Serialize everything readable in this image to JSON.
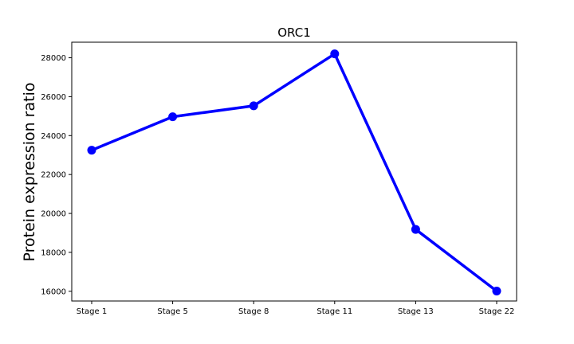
{
  "chart_data": {
    "type": "line",
    "title": "ORC1",
    "xlabel": "",
    "ylabel": "Protein expression ratio",
    "categories": [
      "Stage 1",
      "Stage 5",
      "Stage 8",
      "Stage 11",
      "Stage 13",
      "Stage 22"
    ],
    "series": [
      {
        "values": [
          23250,
          24970,
          25530,
          28200,
          19180,
          16010
        ]
      }
    ],
    "yticks": [
      16000,
      18000,
      20000,
      22000,
      24000,
      26000,
      28000
    ],
    "ytick_labels": [
      "16000",
      "18000",
      "20000",
      "22000",
      "24000",
      "26000",
      "28000"
    ],
    "ylim": [
      15500,
      28800
    ],
    "grid": false,
    "line_color": "#0000ff"
  }
}
